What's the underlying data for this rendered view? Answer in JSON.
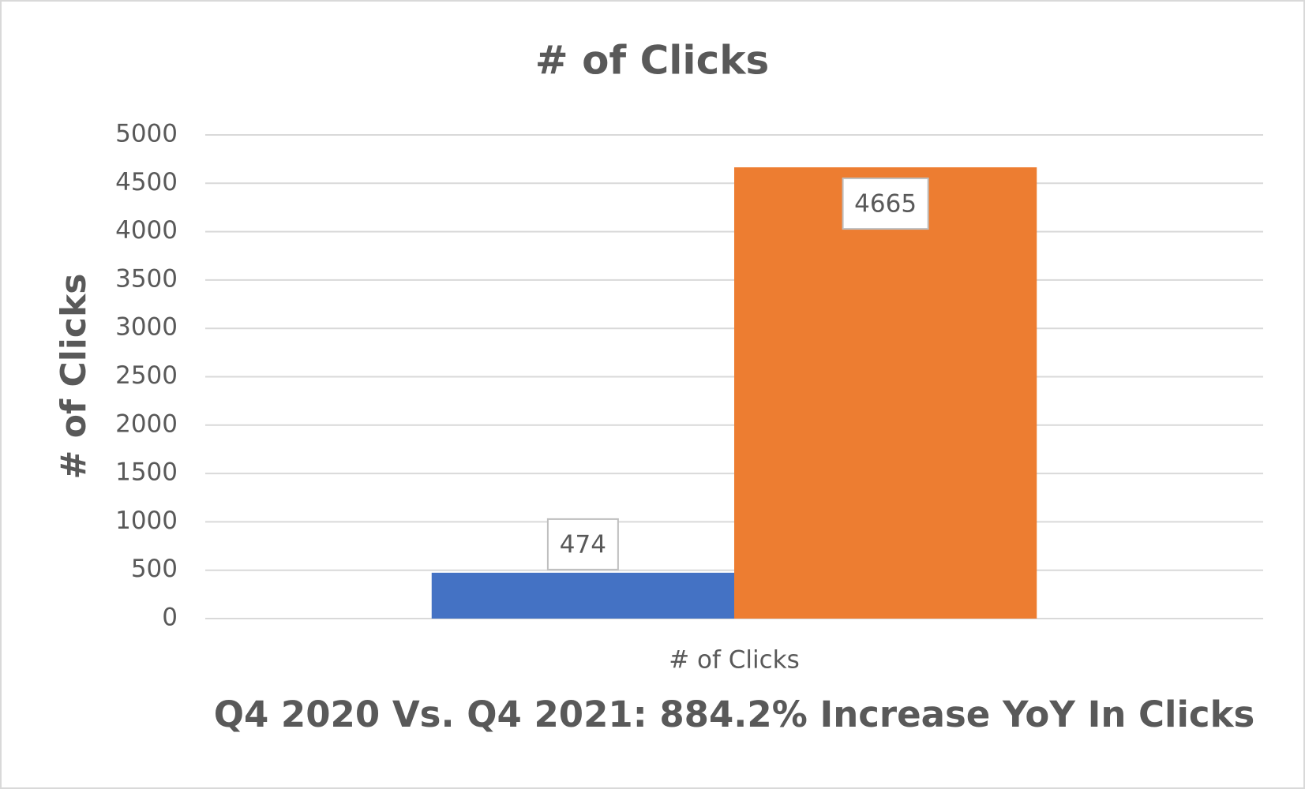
{
  "chart_data": {
    "type": "bar",
    "title": "# of Clicks",
    "y_label": "# of Clicks",
    "x_label": "Q4 2020 Vs. Q4 2021: 884.2% Increase YoY In Clicks",
    "categories": [
      "# of Clicks"
    ],
    "series": [
      {
        "color": "#4472c4",
        "values": [
          474
        ]
      },
      {
        "color": "#ed7d31",
        "values": [
          4665
        ]
      }
    ],
    "ylim": [
      0,
      5000
    ],
    "yticks": [
      0,
      500,
      1000,
      1500,
      2000,
      2500,
      3000,
      3500,
      4000,
      4500,
      5000
    ],
    "grid": true
  }
}
